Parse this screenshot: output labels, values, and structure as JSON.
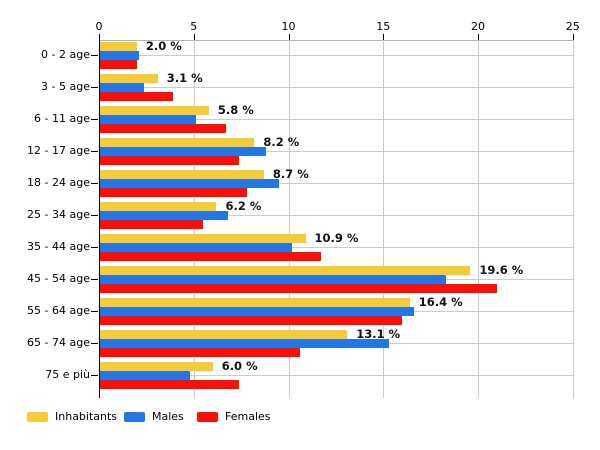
{
  "chart_data": {
    "type": "bar",
    "orientation": "horizontal",
    "title": "",
    "xlabel": "",
    "ylabel": "",
    "xlim": [
      0,
      25
    ],
    "x_ticks": [
      "0",
      "5",
      "10",
      "15",
      "20",
      "25"
    ],
    "grid": true,
    "legend_position": "bottom",
    "categories": [
      "0 - 2 age",
      "3 - 5 age",
      "6 - 11 age",
      "12 - 17 age",
      "18 - 24 age",
      "25 - 34 age",
      "35 - 44 age",
      "45 - 54 age",
      "55 - 64 age",
      "65 - 74 age",
      "75 e più"
    ],
    "series": [
      {
        "name": "Inhabitants",
        "color": "#F5CB38",
        "values": [
          2.0,
          3.1,
          5.8,
          8.2,
          8.7,
          6.2,
          10.9,
          19.6,
          16.4,
          13.1,
          6.0
        ]
      },
      {
        "name": "Males",
        "color": "#2377E4",
        "values": [
          2.1,
          2.4,
          5.1,
          8.8,
          9.5,
          6.8,
          10.2,
          18.3,
          16.6,
          15.3,
          4.8
        ]
      },
      {
        "name": "Females",
        "color": "#F91108",
        "values": [
          2.0,
          3.9,
          6.7,
          7.4,
          7.8,
          5.5,
          11.7,
          21.0,
          16.0,
          10.6,
          7.4
        ]
      }
    ],
    "value_labels": [
      "2.0 %",
      "3.1 %",
      "5.8 %",
      "8.2 %",
      "8.7 %",
      "6.2 %",
      "10.9 %",
      "19.6 %",
      "16.4 %",
      "13.1 %",
      "6.0 %"
    ]
  },
  "colors": {
    "background": "#ffffff",
    "gridline": "#cccccc",
    "plot_border": "#b5b5b5",
    "axis_line": "#000000",
    "text": "#000000",
    "value_label_text": "#111111"
  }
}
